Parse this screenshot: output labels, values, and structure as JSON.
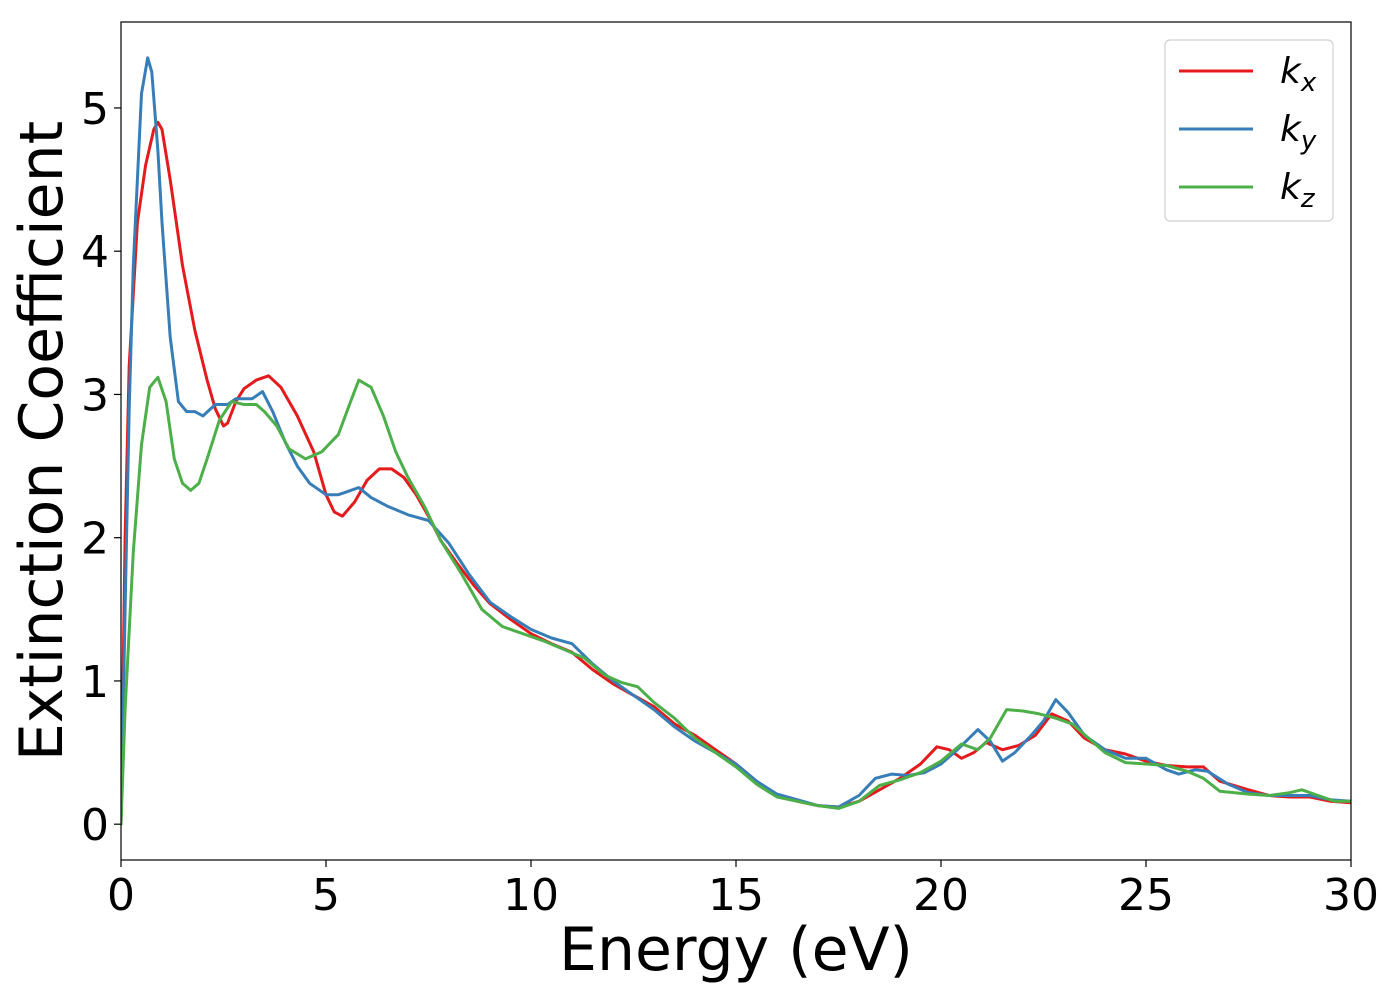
{
  "chart_data": {
    "type": "line",
    "title": "",
    "xlabel": "Energy (eV)",
    "ylabel": "Extinction Coefficient",
    "xlim": [
      0,
      30
    ],
    "ylim": [
      -0.25,
      5.6
    ],
    "xticks": [
      0,
      5,
      10,
      15,
      20,
      25,
      30
    ],
    "xtick_labels": [
      "0",
      "5",
      "10",
      "15",
      "20",
      "25",
      "30"
    ],
    "yticks": [
      0,
      1,
      2,
      3,
      4,
      5
    ],
    "ytick_labels": [
      "0",
      "1",
      "2",
      "3",
      "4",
      "5"
    ],
    "grid": false,
    "legend_position": "top-right",
    "series": [
      {
        "name": "k",
        "subscript": "x",
        "color": "#e41a1c",
        "points": [
          [
            0,
            0
          ],
          [
            0.1,
            2.0
          ],
          [
            0.2,
            3.2
          ],
          [
            0.4,
            4.2
          ],
          [
            0.6,
            4.6
          ],
          [
            0.8,
            4.85
          ],
          [
            0.9,
            4.9
          ],
          [
            1.0,
            4.85
          ],
          [
            1.2,
            4.5
          ],
          [
            1.5,
            3.9
          ],
          [
            1.8,
            3.45
          ],
          [
            2.1,
            3.1
          ],
          [
            2.3,
            2.9
          ],
          [
            2.5,
            2.78
          ],
          [
            2.6,
            2.8
          ],
          [
            2.8,
            2.95
          ],
          [
            3.0,
            3.04
          ],
          [
            3.3,
            3.1
          ],
          [
            3.6,
            3.13
          ],
          [
            3.9,
            3.05
          ],
          [
            4.3,
            2.85
          ],
          [
            4.7,
            2.6
          ],
          [
            5.0,
            2.3
          ],
          [
            5.2,
            2.18
          ],
          [
            5.4,
            2.15
          ],
          [
            5.7,
            2.25
          ],
          [
            6.0,
            2.4
          ],
          [
            6.3,
            2.48
          ],
          [
            6.6,
            2.48
          ],
          [
            6.9,
            2.42
          ],
          [
            7.2,
            2.3
          ],
          [
            7.5,
            2.15
          ],
          [
            7.8,
            1.98
          ],
          [
            8.2,
            1.82
          ],
          [
            8.6,
            1.67
          ],
          [
            9.0,
            1.54
          ],
          [
            9.5,
            1.43
          ],
          [
            10.0,
            1.33
          ],
          [
            10.5,
            1.26
          ],
          [
            11.0,
            1.2
          ],
          [
            11.5,
            1.08
          ],
          [
            12.0,
            0.98
          ],
          [
            12.5,
            0.9
          ],
          [
            13.0,
            0.82
          ],
          [
            13.5,
            0.7
          ],
          [
            14.0,
            0.62
          ],
          [
            14.5,
            0.52
          ],
          [
            15.0,
            0.42
          ],
          [
            15.5,
            0.3
          ],
          [
            16.0,
            0.2
          ],
          [
            16.5,
            0.16
          ],
          [
            17.0,
            0.13
          ],
          [
            17.5,
            0.12
          ],
          [
            18.0,
            0.16
          ],
          [
            18.5,
            0.24
          ],
          [
            19.0,
            0.32
          ],
          [
            19.5,
            0.42
          ],
          [
            19.9,
            0.54
          ],
          [
            20.2,
            0.52
          ],
          [
            20.5,
            0.46
          ],
          [
            20.8,
            0.5
          ],
          [
            21.1,
            0.57
          ],
          [
            21.5,
            0.52
          ],
          [
            21.9,
            0.55
          ],
          [
            22.3,
            0.62
          ],
          [
            22.7,
            0.77
          ],
          [
            23.1,
            0.72
          ],
          [
            23.5,
            0.6
          ],
          [
            24.0,
            0.52
          ],
          [
            24.5,
            0.49
          ],
          [
            25.0,
            0.44
          ],
          [
            25.5,
            0.41
          ],
          [
            26.0,
            0.4
          ],
          [
            26.4,
            0.4
          ],
          [
            26.8,
            0.3
          ],
          [
            27.5,
            0.24
          ],
          [
            28.0,
            0.2
          ],
          [
            28.5,
            0.19
          ],
          [
            29.0,
            0.19
          ],
          [
            29.5,
            0.16
          ],
          [
            30.0,
            0.15
          ]
        ]
      },
      {
        "name": "k",
        "subscript": "y",
        "color": "#377eb8",
        "points": [
          [
            0,
            0
          ],
          [
            0.1,
            1.5
          ],
          [
            0.2,
            2.9
          ],
          [
            0.3,
            3.9
          ],
          [
            0.4,
            4.5
          ],
          [
            0.5,
            5.1
          ],
          [
            0.65,
            5.35
          ],
          [
            0.75,
            5.25
          ],
          [
            0.9,
            4.7
          ],
          [
            1.0,
            4.2
          ],
          [
            1.2,
            3.4
          ],
          [
            1.4,
            2.95
          ],
          [
            1.6,
            2.88
          ],
          [
            1.8,
            2.88
          ],
          [
            2.0,
            2.85
          ],
          [
            2.3,
            2.93
          ],
          [
            2.6,
            2.93
          ],
          [
            2.8,
            2.97
          ],
          [
            3.0,
            2.97
          ],
          [
            3.2,
            2.97
          ],
          [
            3.45,
            3.02
          ],
          [
            3.7,
            2.88
          ],
          [
            4.0,
            2.67
          ],
          [
            4.3,
            2.5
          ],
          [
            4.6,
            2.38
          ],
          [
            5.0,
            2.3
          ],
          [
            5.3,
            2.3
          ],
          [
            5.5,
            2.32
          ],
          [
            5.8,
            2.35
          ],
          [
            6.1,
            2.28
          ],
          [
            6.5,
            2.22
          ],
          [
            7.0,
            2.16
          ],
          [
            7.5,
            2.12
          ],
          [
            8.0,
            1.96
          ],
          [
            8.5,
            1.74
          ],
          [
            9.0,
            1.55
          ],
          [
            9.5,
            1.45
          ],
          [
            10.0,
            1.36
          ],
          [
            10.5,
            1.3
          ],
          [
            11.0,
            1.26
          ],
          [
            11.5,
            1.12
          ],
          [
            12.0,
            1.0
          ],
          [
            12.5,
            0.9
          ],
          [
            13.0,
            0.8
          ],
          [
            13.5,
            0.68
          ],
          [
            14.0,
            0.58
          ],
          [
            14.5,
            0.5
          ],
          [
            15.0,
            0.42
          ],
          [
            15.5,
            0.3
          ],
          [
            16.0,
            0.21
          ],
          [
            16.5,
            0.17
          ],
          [
            17.0,
            0.13
          ],
          [
            17.5,
            0.12
          ],
          [
            18.0,
            0.2
          ],
          [
            18.4,
            0.32
          ],
          [
            18.8,
            0.35
          ],
          [
            19.2,
            0.34
          ],
          [
            19.6,
            0.36
          ],
          [
            20.0,
            0.42
          ],
          [
            20.4,
            0.52
          ],
          [
            20.9,
            0.66
          ],
          [
            21.2,
            0.58
          ],
          [
            21.5,
            0.44
          ],
          [
            21.8,
            0.5
          ],
          [
            22.2,
            0.62
          ],
          [
            22.5,
            0.72
          ],
          [
            22.8,
            0.87
          ],
          [
            23.1,
            0.78
          ],
          [
            23.5,
            0.62
          ],
          [
            24.0,
            0.52
          ],
          [
            24.5,
            0.46
          ],
          [
            25.0,
            0.46
          ],
          [
            25.5,
            0.38
          ],
          [
            25.8,
            0.35
          ],
          [
            26.2,
            0.38
          ],
          [
            26.5,
            0.37
          ],
          [
            27.0,
            0.28
          ],
          [
            27.5,
            0.22
          ],
          [
            28.0,
            0.2
          ],
          [
            28.5,
            0.2
          ],
          [
            29.0,
            0.2
          ],
          [
            29.5,
            0.17
          ],
          [
            30.0,
            0.16
          ]
        ]
      },
      {
        "name": "k",
        "subscript": "z",
        "color": "#4daf4a",
        "points": [
          [
            0,
            0
          ],
          [
            0.1,
            0.8
          ],
          [
            0.3,
            1.9
          ],
          [
            0.5,
            2.65
          ],
          [
            0.7,
            3.05
          ],
          [
            0.9,
            3.12
          ],
          [
            1.1,
            2.95
          ],
          [
            1.3,
            2.55
          ],
          [
            1.5,
            2.38
          ],
          [
            1.7,
            2.33
          ],
          [
            1.9,
            2.38
          ],
          [
            2.1,
            2.55
          ],
          [
            2.4,
            2.82
          ],
          [
            2.7,
            2.95
          ],
          [
            3.0,
            2.93
          ],
          [
            3.3,
            2.93
          ],
          [
            3.5,
            2.88
          ],
          [
            3.8,
            2.78
          ],
          [
            4.1,
            2.62
          ],
          [
            4.5,
            2.55
          ],
          [
            4.9,
            2.6
          ],
          [
            5.3,
            2.72
          ],
          [
            5.6,
            2.95
          ],
          [
            5.8,
            3.1
          ],
          [
            6.1,
            3.05
          ],
          [
            6.4,
            2.85
          ],
          [
            6.7,
            2.6
          ],
          [
            7.0,
            2.42
          ],
          [
            7.4,
            2.22
          ],
          [
            7.8,
            1.98
          ],
          [
            8.3,
            1.75
          ],
          [
            8.8,
            1.5
          ],
          [
            9.3,
            1.38
          ],
          [
            9.8,
            1.33
          ],
          [
            10.3,
            1.28
          ],
          [
            10.8,
            1.22
          ],
          [
            11.3,
            1.16
          ],
          [
            11.8,
            1.04
          ],
          [
            12.2,
            0.99
          ],
          [
            12.6,
            0.96
          ],
          [
            13.0,
            0.85
          ],
          [
            13.5,
            0.74
          ],
          [
            14.0,
            0.6
          ],
          [
            14.5,
            0.5
          ],
          [
            15.0,
            0.4
          ],
          [
            15.5,
            0.28
          ],
          [
            16.0,
            0.19
          ],
          [
            16.5,
            0.16
          ],
          [
            17.0,
            0.13
          ],
          [
            17.5,
            0.11
          ],
          [
            18.0,
            0.16
          ],
          [
            18.5,
            0.27
          ],
          [
            19.0,
            0.31
          ],
          [
            19.5,
            0.36
          ],
          [
            20.0,
            0.44
          ],
          [
            20.5,
            0.56
          ],
          [
            20.9,
            0.52
          ],
          [
            21.2,
            0.6
          ],
          [
            21.6,
            0.8
          ],
          [
            22.0,
            0.79
          ],
          [
            22.4,
            0.77
          ],
          [
            22.8,
            0.74
          ],
          [
            23.2,
            0.7
          ],
          [
            23.6,
            0.6
          ],
          [
            24.0,
            0.5
          ],
          [
            24.5,
            0.43
          ],
          [
            25.0,
            0.42
          ],
          [
            25.5,
            0.41
          ],
          [
            26.0,
            0.37
          ],
          [
            26.4,
            0.32
          ],
          [
            26.8,
            0.23
          ],
          [
            27.5,
            0.21
          ],
          [
            28.0,
            0.2
          ],
          [
            28.5,
            0.22
          ],
          [
            28.8,
            0.24
          ],
          [
            29.2,
            0.2
          ],
          [
            29.6,
            0.16
          ],
          [
            30.0,
            0.16
          ]
        ]
      }
    ]
  }
}
